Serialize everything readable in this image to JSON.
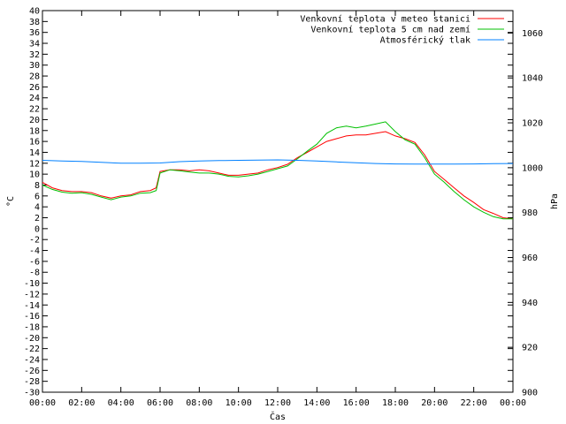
{
  "chart_data": {
    "type": "line",
    "xlabel": "Čas",
    "ylabel_left": "°C",
    "ylabel_right": "hPa",
    "x_ticks": [
      "00:00",
      "02:00",
      "04:00",
      "06:00",
      "08:00",
      "10:00",
      "12:00",
      "14:00",
      "16:00",
      "18:00",
      "20:00",
      "22:00",
      "00:00"
    ],
    "x_tick_hours": [
      0,
      2,
      4,
      6,
      8,
      10,
      12,
      14,
      16,
      18,
      20,
      22,
      24
    ],
    "xlim_hours": [
      0,
      24
    ],
    "ylim_left": [
      -30,
      40
    ],
    "ylim_right": [
      900,
      1070
    ],
    "y_left_ticks": [
      40,
      38,
      36,
      34,
      32,
      30,
      28,
      26,
      24,
      22,
      20,
      18,
      16,
      14,
      12,
      10,
      8,
      6,
      4,
      2,
      0,
      -2,
      -4,
      -6,
      -8,
      -10,
      -12,
      -14,
      -16,
      -18,
      -20,
      -22,
      -24,
      -26,
      -28,
      -30
    ],
    "y_right_ticks": [
      1060,
      1040,
      1020,
      1000,
      980,
      960,
      940,
      920,
      900
    ],
    "grid": false,
    "legend_position": "top-right",
    "series": [
      {
        "name": "Venkovní teplota v meteo stanici",
        "color": "#ff0000",
        "axis": "left",
        "x": [
          0,
          0.5,
          1,
          1.5,
          2,
          2.5,
          3,
          3.5,
          4,
          4.5,
          5,
          5.5,
          5.8,
          6,
          6.5,
          7,
          7.5,
          8,
          8.5,
          9,
          9.5,
          10,
          10.5,
          11,
          11.5,
          12,
          12.5,
          13,
          13.5,
          14,
          14.5,
          15,
          15.5,
          16,
          16.5,
          17,
          17.5,
          18,
          18.5,
          19,
          19.5,
          20,
          20.5,
          21,
          21.5,
          22,
          22.5,
          23,
          23.5,
          24
        ],
        "y": [
          8.5,
          7.5,
          7,
          6.8,
          6.8,
          6.6,
          6,
          5.6,
          6,
          6.2,
          6.8,
          7,
          7.5,
          10.5,
          10.8,
          10.8,
          10.6,
          10.8,
          10.6,
          10.2,
          9.8,
          9.8,
          10,
          10.2,
          10.8,
          11.2,
          11.8,
          13,
          14,
          15,
          16,
          16.5,
          17,
          17.2,
          17.2,
          17.5,
          17.8,
          17,
          16.5,
          15.8,
          13.5,
          10.5,
          9,
          7.5,
          6,
          4.8,
          3.5,
          2.8,
          2,
          1.8
        ]
      },
      {
        "name": "Venkovní teplota 5 cm nad zemí",
        "color": "#00c000",
        "axis": "left",
        "x": [
          0,
          0.5,
          1,
          1.5,
          2,
          2.5,
          3,
          3.5,
          4,
          4.5,
          5,
          5.5,
          5.8,
          6,
          6.5,
          7,
          7.5,
          8,
          8.5,
          9,
          9.5,
          10,
          10.5,
          11,
          11.5,
          12,
          12.5,
          13,
          13.5,
          14,
          14.5,
          15,
          15.5,
          16,
          16.5,
          17,
          17.5,
          18,
          18.5,
          19,
          19.5,
          20,
          20.5,
          21,
          21.5,
          22,
          22.5,
          23,
          23.5,
          24
        ],
        "y": [
          8,
          7.2,
          6.7,
          6.5,
          6.6,
          6.3,
          5.8,
          5.3,
          5.8,
          6,
          6.5,
          6.6,
          7,
          10.2,
          10.8,
          10.6,
          10.4,
          10.2,
          10.2,
          10,
          9.6,
          9.5,
          9.7,
          10,
          10.5,
          11,
          11.5,
          12.8,
          14.2,
          15.5,
          17.5,
          18.5,
          18.8,
          18.5,
          18.8,
          19.2,
          19.6,
          17.8,
          16.3,
          15.5,
          13,
          10,
          8.5,
          6.8,
          5.3,
          4,
          3,
          2.2,
          1.8,
          1.8
        ]
      },
      {
        "name": "Atmosférický tlak",
        "color": "#0080ff",
        "axis": "right",
        "x": [
          0,
          1,
          2,
          3,
          4,
          5,
          6,
          7,
          8,
          9,
          10,
          11,
          12,
          13,
          14,
          15,
          16,
          17,
          18,
          19,
          20,
          21,
          22,
          23,
          24
        ],
        "y": [
          1003.3,
          1003,
          1002.8,
          1002.4,
          1002,
          1002,
          1002.1,
          1002.7,
          1003,
          1003.2,
          1003.3,
          1003.4,
          1003.5,
          1003.3,
          1003,
          1002.6,
          1002.2,
          1001.9,
          1001.7,
          1001.6,
          1001.6,
          1001.6,
          1001.7,
          1001.8,
          1001.9
        ]
      }
    ]
  }
}
